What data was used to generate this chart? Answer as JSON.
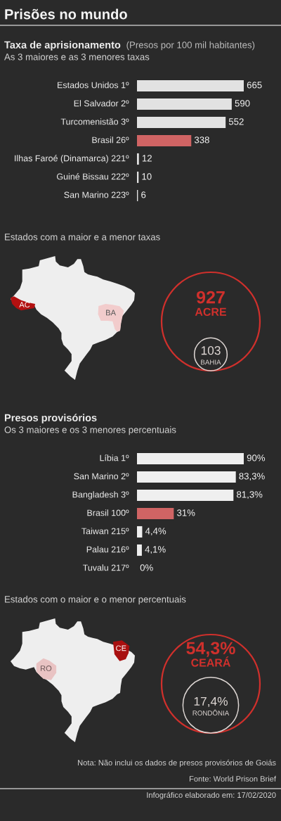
{
  "chart_data": [
    {
      "type": "other",
      "title": "Prisões no mundo"
    },
    {
      "type": "bar",
      "orientation": "horizontal",
      "title": "Taxa de aprisionamento",
      "xlabel": "(Presos por 100 mil habitantes)",
      "subtitle": "As 3 maiores e as 3 menores taxas",
      "categories": [
        "Estados Unidos 1º",
        "El Salvador 2º",
        "Turcomenistão 3º",
        "Brasil 26º",
        "Ilhas Faroé (Dinamarca) 221º",
        "Guiné Bissau 222º",
        "San Marino 223º"
      ],
      "values": [
        665,
        590,
        552,
        338,
        12,
        10,
        6
      ],
      "colors": [
        "#e2e2e2",
        "#e2e2e2",
        "#e2e2e2",
        "#d06464",
        "#e2e2e2",
        "#e2e2e2",
        "#e2e2e2"
      ],
      "tick_labels": "y",
      "data_labels": true
    },
    {
      "type": "other",
      "title": "Estados com a maior e a menor taxas",
      "categories": [
        "ACRE",
        "BAHIA"
      ],
      "values": [
        927,
        103
      ],
      "colors": [
        "#d0302c",
        "#ddd6d3"
      ],
      "data_labels": true,
      "annotations": [
        "AC",
        "BA"
      ]
    },
    {
      "type": "bar",
      "orientation": "horizontal",
      "title": "Presos provisórios",
      "subtitle": "Os 3 maiores e os 3 menores percentuais",
      "categories": [
        "Líbia 1º",
        "San Marino 2º",
        "Bangladesh 3º",
        "Brasil 100º",
        "Taiwan 215º",
        "Palau 216º",
        "Tuvalu 217º"
      ],
      "values": [
        90,
        83.3,
        81.3,
        31,
        4.4,
        4.1,
        0
      ],
      "value_labels": [
        "90%",
        "83,3%",
        "81,3%",
        "31%",
        "4,4%",
        "4,1%",
        "0%"
      ],
      "colors": [
        "#efefef",
        "#efefef",
        "#efefef",
        "#d06464",
        "#efefef",
        "#efefef",
        "#efefef"
      ],
      "tick_labels": "y"
    },
    {
      "type": "other",
      "title": "Estados com o maior e o menor percentuais",
      "categories": [
        "CEARÁ",
        "RONDÔNIA"
      ],
      "values": [
        54.3,
        17.4
      ],
      "value_labels": [
        "54,3%",
        "17,4%"
      ],
      "colors": [
        "#d0302c",
        "#ddd6d3"
      ],
      "annotations": [
        "CE",
        "RO"
      ]
    },
    {
      "type": "other",
      "annotations": [
        "Nota: Não inclui os dados de presos provisórios de Goiás",
        "Fonte: World Prison Brief",
        "Infográfico elaborado em: 17/02/2020"
      ]
    }
  ]
}
